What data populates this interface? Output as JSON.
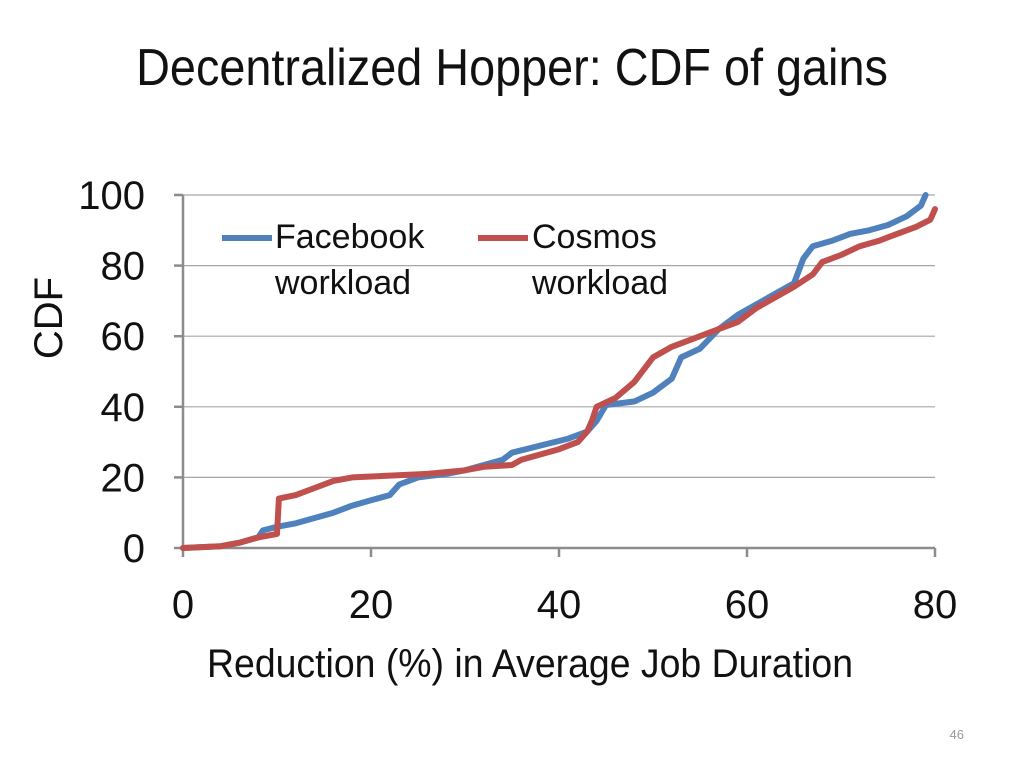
{
  "slide": {
    "title": "Decentralized Hopper: CDF of gains",
    "page_number": "46"
  },
  "chart_data": {
    "type": "line",
    "title": "",
    "xlabel": "Reduction (%) in Average Job Duration",
    "ylabel": "CDF",
    "xlim": [
      0,
      80
    ],
    "ylim": [
      0,
      100
    ],
    "xticks": [
      0,
      20,
      40,
      60,
      80
    ],
    "yticks": [
      0,
      20,
      40,
      60,
      80,
      100
    ],
    "grid": {
      "horizontal": true,
      "vertical": false
    },
    "legend": {
      "placement": "top-left"
    },
    "series": [
      {
        "name": "Facebook workload",
        "color": "#4F81BD",
        "points": [
          [
            0,
            0
          ],
          [
            4,
            0.5
          ],
          [
            6,
            1.5
          ],
          [
            8,
            3
          ],
          [
            8.5,
            5
          ],
          [
            10,
            6
          ],
          [
            12,
            7
          ],
          [
            14,
            8.5
          ],
          [
            16,
            10
          ],
          [
            18,
            12
          ],
          [
            20,
            13.5
          ],
          [
            22,
            15
          ],
          [
            23,
            18
          ],
          [
            25,
            20
          ],
          [
            28,
            21
          ],
          [
            30,
            22
          ],
          [
            32,
            23.5
          ],
          [
            34,
            25
          ],
          [
            35,
            27
          ],
          [
            38,
            29
          ],
          [
            41,
            31
          ],
          [
            43,
            33
          ],
          [
            44,
            36
          ],
          [
            45,
            40.5
          ],
          [
            48,
            41.5
          ],
          [
            50,
            44
          ],
          [
            52,
            48
          ],
          [
            53,
            54
          ],
          [
            55,
            56.5
          ],
          [
            57,
            62
          ],
          [
            59,
            66
          ],
          [
            61,
            69
          ],
          [
            63,
            72
          ],
          [
            65,
            75
          ],
          [
            66,
            82
          ],
          [
            67,
            85.5
          ],
          [
            69,
            87
          ],
          [
            71,
            89
          ],
          [
            73,
            90
          ],
          [
            75,
            91.5
          ],
          [
            77,
            94
          ],
          [
            78.5,
            97
          ],
          [
            79,
            100
          ]
        ]
      },
      {
        "name": "Cosmos workload",
        "color": "#C0504D",
        "points": [
          [
            0,
            0
          ],
          [
            4,
            0.5
          ],
          [
            6,
            1.5
          ],
          [
            8,
            3
          ],
          [
            10,
            4
          ],
          [
            10.2,
            14
          ],
          [
            12,
            15
          ],
          [
            14,
            17
          ],
          [
            16,
            19
          ],
          [
            18,
            20
          ],
          [
            22,
            20.5
          ],
          [
            26,
            21
          ],
          [
            30,
            22
          ],
          [
            32,
            23
          ],
          [
            35,
            23.5
          ],
          [
            36,
            25
          ],
          [
            40,
            28
          ],
          [
            42,
            30
          ],
          [
            43,
            33
          ],
          [
            43.5,
            36
          ],
          [
            44,
            40
          ],
          [
            46,
            42.5
          ],
          [
            48,
            47
          ],
          [
            50,
            54
          ],
          [
            52,
            57
          ],
          [
            55,
            60
          ],
          [
            57,
            62
          ],
          [
            59,
            64
          ],
          [
            61,
            68
          ],
          [
            63,
            71
          ],
          [
            65,
            74
          ],
          [
            67,
            77.5
          ],
          [
            68,
            81
          ],
          [
            70,
            83
          ],
          [
            72,
            85.5
          ],
          [
            74,
            87
          ],
          [
            76,
            89
          ],
          [
            78,
            91
          ],
          [
            79.5,
            93
          ],
          [
            80,
            96
          ]
        ]
      }
    ]
  }
}
